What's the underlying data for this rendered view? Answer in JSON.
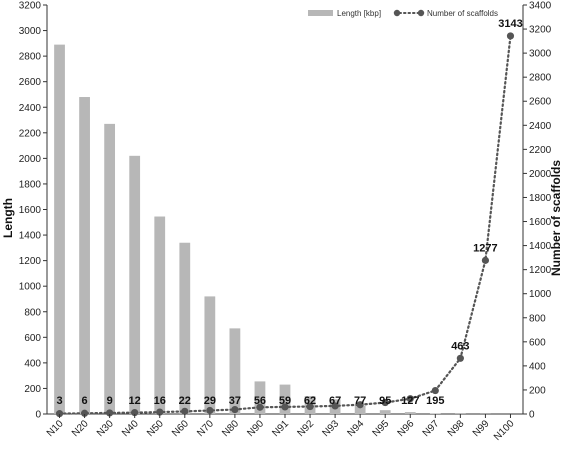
{
  "chart_data": {
    "type": "bar+line",
    "categories": [
      "N10",
      "N20",
      "N30",
      "N40",
      "N50",
      "N60",
      "N70",
      "N80",
      "N90",
      "N91",
      "N92",
      "N93",
      "N94",
      "N95",
      "N96",
      "N97",
      "N98",
      "N99",
      "N100"
    ],
    "series": [
      {
        "name": "Length [kbp]",
        "type": "bar",
        "axis": "left",
        "color": "#b7b7b7",
        "values": [
          2890,
          2480,
          2270,
          2020,
          1545,
          1340,
          920,
          670,
          255,
          230,
          140,
          115,
          65,
          30,
          15,
          5,
          2,
          1,
          0
        ]
      },
      {
        "name": "Number of scaffolds",
        "type": "line",
        "axis": "right",
        "color": "#555555",
        "line_style": "dotted",
        "values": [
          3,
          6,
          9,
          12,
          16,
          22,
          29,
          37,
          56,
          59,
          62,
          67,
          77,
          95,
          127,
          195,
          463,
          1277,
          3143
        ],
        "labels": [
          "3",
          "6",
          "9",
          "12",
          "16",
          "22",
          "29",
          "37",
          "56",
          "59",
          "62",
          "67",
          "77",
          "95",
          "127",
          "195",
          "463",
          "1277",
          "3143"
        ]
      }
    ],
    "ylabel_left": "Length",
    "ylabel_right": "Number of scaffolds",
    "ylim_left": [
      0,
      3200
    ],
    "yticks_left": [
      "0",
      "200",
      "400",
      "600",
      "800",
      "1000",
      "1200",
      "1400",
      "1600",
      "1800",
      "2000",
      "2200",
      "2400",
      "2600",
      "2800",
      "3000",
      "3200"
    ],
    "ylim_right": [
      0,
      3400
    ],
    "yticks_right": [
      "0",
      "200",
      "400",
      "600",
      "800",
      "1000",
      "1200",
      "1400",
      "1600",
      "1800",
      "2000",
      "2200",
      "2400",
      "2600",
      "2800",
      "3000",
      "3200",
      "3400"
    ],
    "grid": false,
    "legend_position": "top-right"
  }
}
